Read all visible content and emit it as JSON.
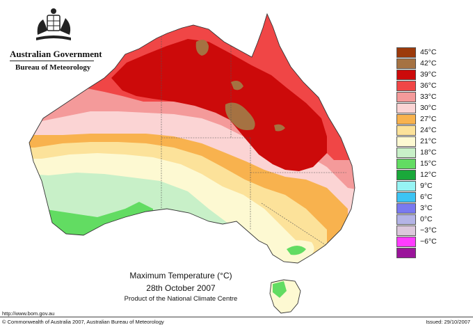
{
  "branding": {
    "government": "Australian Government",
    "bureau": "Bureau of Meteorology"
  },
  "title": {
    "main": "Maximum Temperature (°C)",
    "date": "28th October 2007",
    "product": "Product of the National Climate Centre"
  },
  "legend": {
    "items": [
      {
        "label": "45°C",
        "color": "#9c3a0b"
      },
      {
        "label": "42°C",
        "color": "#a57242"
      },
      {
        "label": "39°C",
        "color": "#cc0a0a"
      },
      {
        "label": "36°C",
        "color": "#f04646"
      },
      {
        "label": "33°C",
        "color": "#f49a9a"
      },
      {
        "label": "30°C",
        "color": "#fbd4d4"
      },
      {
        "label": "27°C",
        "color": "#f8b24e"
      },
      {
        "label": "24°C",
        "color": "#fce29a"
      },
      {
        "label": "21°C",
        "color": "#fdf9d2"
      },
      {
        "label": "18°C",
        "color": "#c8f0c8"
      },
      {
        "label": "15°C",
        "color": "#62dc62"
      },
      {
        "label": "12°C",
        "color": "#1aa83a"
      },
      {
        "label": "9°C",
        "color": "#96f4f4"
      },
      {
        "label": "6°C",
        "color": "#3cc4f4"
      },
      {
        "label": "3°C",
        "color": "#7a7af0"
      },
      {
        "label": "0°C",
        "color": "#b4b4e6"
      },
      {
        "label": "−3°C",
        "color": "#dcc8dc"
      },
      {
        "label": "−6°C",
        "color": "#ff3cff"
      },
      {
        "label": "",
        "color": "#9a149a"
      }
    ]
  },
  "footer": {
    "url": "http://www.bom.gov.au",
    "copyright": "© Commonwealth of Australia 2007, Australian Bureau of Meteorology",
    "issued": "Issued: 29/10/2007"
  }
}
